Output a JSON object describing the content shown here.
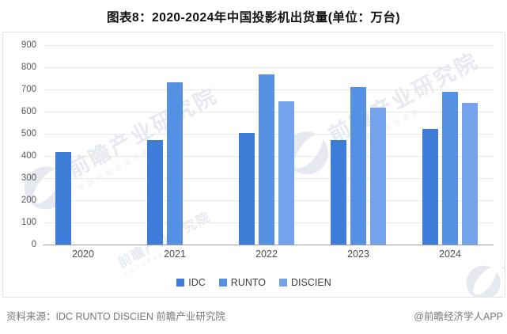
{
  "title": "图表8：2020-2024年中国投影机出货量(单位：万台)",
  "chart_data": {
    "type": "bar",
    "title": "图表8：2020-2024年中国投影机出货量(单位：万台)",
    "unit": "万台",
    "categories": [
      "2020",
      "2021",
      "2022",
      "2023",
      "2024"
    ],
    "series": [
      {
        "name": "IDC",
        "color": "#3d7dd8",
        "values": [
          417,
          470,
          505,
          473,
          520
        ]
      },
      {
        "name": "RUNTO",
        "color": "#5590e2",
        "values": [
          null,
          733,
          768,
          712,
          689
        ]
      },
      {
        "name": "DISCIEN",
        "color": "#74a3ec",
        "values": [
          null,
          null,
          645,
          617,
          641
        ]
      }
    ],
    "ylim": [
      0,
      900
    ],
    "yticks": [
      0,
      100,
      200,
      300,
      400,
      500,
      600,
      700,
      800,
      900
    ],
    "grid": true,
    "legend_position": "bottom"
  },
  "watermark": {
    "text": "前瞻产业研究院",
    "subtext": "中国产业咨询领导者"
  },
  "footer": {
    "source": "资料来源：IDC RUNTO DISCIEN 前瞻产业研究院",
    "credit": "@前瞻经济学人APP"
  }
}
